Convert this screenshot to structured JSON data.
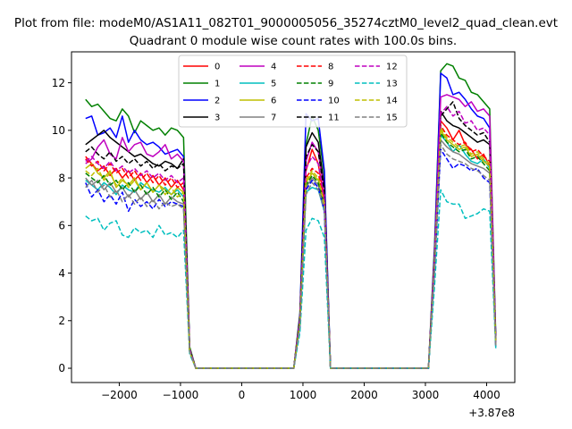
{
  "chart_data": {
    "type": "line",
    "suptitle": "Plot from file: modeM0/AS1A11_082T01_9000005056_35274cztM0_level2_quad_clean.evt",
    "title": "Quadrant 0 module wise count rates with 100.0s bins.",
    "xlabel": "",
    "ylabel": "",
    "x_offset_label": "+3.87e8",
    "xlim": [
      -2780,
      4460
    ],
    "ylim": [
      -0.6,
      13.3
    ],
    "xticks": [
      -2000,
      -1000,
      0,
      1000,
      2000,
      3000,
      4000
    ],
    "xtick_labels": [
      "−2000",
      "−1000",
      "0",
      "1000",
      "2000",
      "3000",
      "4000"
    ],
    "yticks": [
      0,
      2,
      4,
      6,
      8,
      10,
      12
    ],
    "ytick_labels": [
      "0",
      "2",
      "4",
      "6",
      "8",
      "10",
      "12"
    ],
    "grid": false,
    "legend_placement": "top-center",
    "legend_columns": 4,
    "segments": [
      {
        "x_start": -2550,
        "x_end": -950
      },
      {
        "x_start": 1050,
        "x_end": 1350
      },
      {
        "x_start": 3250,
        "x_end": 4050
      }
    ],
    "x_other": [
      -850,
      -750,
      950,
      1450,
      3150,
      4150
    ],
    "series": [
      {
        "name": "0",
        "color": "#ff0000",
        "dash": false,
        "seg_values": [
          [
            8.9,
            8.6,
            8.3,
            8.5,
            8.1,
            8.4,
            8.0,
            8.3,
            7.9,
            8.2,
            7.8,
            8.1,
            7.7,
            8.0,
            7.6,
            7.9,
            7.5
          ],
          [
            8.3,
            9.2,
            8.6,
            7.0
          ],
          [
            10.4,
            10.1,
            9.6,
            10.0,
            9.4,
            9.2,
            8.8,
            9.0,
            8.5
          ]
        ],
        "tail": [
          0.7,
          0.5,
          2.0,
          0.4,
          4.5,
          1.0
        ]
      },
      {
        "name": "1",
        "color": "#008000",
        "dash": false,
        "seg_values": [
          [
            11.3,
            11.0,
            11.1,
            10.8,
            10.5,
            10.4,
            10.9,
            10.6,
            9.9,
            10.4,
            10.2,
            10.0,
            10.1,
            9.8,
            10.1,
            10.0,
            9.7
          ],
          [
            9.4,
            10.6,
            10.0,
            8.1
          ],
          [
            12.5,
            12.8,
            12.7,
            12.2,
            12.1,
            11.6,
            11.5,
            11.2,
            10.9
          ]
        ],
        "tail": [
          0.9,
          0.6,
          2.3,
          0.5,
          5.2,
          1.3
        ]
      },
      {
        "name": "2",
        "color": "#0000ff",
        "dash": false,
        "seg_values": [
          [
            10.5,
            10.6,
            9.8,
            9.9,
            10.1,
            9.7,
            10.6,
            9.5,
            10.0,
            9.6,
            9.4,
            9.5,
            9.3,
            9.0,
            9.1,
            9.2,
            8.9
          ],
          [
            10.7,
            10.4,
            10.5,
            8.3
          ],
          [
            12.4,
            12.2,
            11.5,
            11.6,
            11.3,
            10.9,
            10.6,
            10.5,
            10.1
          ]
        ],
        "tail": [
          0.8,
          0.6,
          2.2,
          0.5,
          5.0,
          1.2
        ]
      },
      {
        "name": "3",
        "color": "#000000",
        "dash": false,
        "seg_values": [
          [
            9.4,
            9.6,
            9.8,
            10.0,
            9.7,
            9.5,
            9.3,
            9.1,
            8.9,
            9.0,
            8.8,
            8.6,
            8.5,
            8.7,
            8.6,
            8.4,
            8.8
          ],
          [
            9.3,
            9.9,
            9.5,
            7.6
          ],
          [
            10.8,
            10.4,
            10.2,
            10.1,
            9.9,
            9.7,
            9.5,
            9.6,
            9.4
          ]
        ],
        "tail": [
          0.8,
          0.5,
          2.1,
          0.4,
          4.7,
          1.1
        ]
      },
      {
        "name": "4",
        "color": "#bf00bf",
        "dash": false,
        "seg_values": [
          [
            8.6,
            8.8,
            9.3,
            9.6,
            9.0,
            8.8,
            9.7,
            9.1,
            9.4,
            9.5,
            9.0,
            8.9,
            9.1,
            9.4,
            8.8,
            9.0,
            8.7
          ],
          [
            8.7,
            9.5,
            9.1,
            7.4
          ],
          [
            11.4,
            11.5,
            11.4,
            11.3,
            11.0,
            11.2,
            10.8,
            10.9,
            10.6
          ]
        ],
        "tail": [
          0.8,
          0.5,
          2.1,
          0.4,
          4.8,
          1.1
        ]
      },
      {
        "name": "5",
        "color": "#00bfbf",
        "dash": false,
        "seg_values": [
          [
            7.9,
            7.7,
            7.5,
            7.8,
            7.6,
            7.3,
            7.7,
            7.5,
            7.4,
            7.8,
            7.6,
            7.5,
            7.4,
            7.6,
            7.3,
            7.5,
            7.2
          ],
          [
            7.4,
            7.6,
            7.5,
            6.6
          ],
          [
            9.8,
            9.5,
            9.1,
            9.4,
            9.0,
            8.7,
            8.6,
            8.8,
            8.4
          ]
        ],
        "tail": [
          0.7,
          0.4,
          1.8,
          0.3,
          4.2,
          0.9
        ]
      },
      {
        "name": "6",
        "color": "#bfbf00",
        "dash": false,
        "seg_values": [
          [
            8.4,
            8.6,
            8.2,
            8.0,
            8.3,
            7.6,
            7.9,
            7.7,
            8.0,
            7.5,
            7.8,
            7.4,
            7.7,
            7.5,
            7.3,
            7.6,
            7.4
          ],
          [
            7.8,
            8.2,
            7.9,
            6.9
          ],
          [
            10.0,
            9.6,
            9.4,
            9.2,
            9.3,
            8.9,
            9.0,
            8.7,
            8.5
          ]
        ],
        "tail": [
          0.7,
          0.4,
          1.9,
          0.3,
          4.4,
          1.0
        ]
      },
      {
        "name": "7",
        "color": "#808080",
        "dash": false,
        "seg_values": [
          [
            8.0,
            7.7,
            7.9,
            7.5,
            7.8,
            7.4,
            7.6,
            7.2,
            7.5,
            7.1,
            7.4,
            7.0,
            7.3,
            6.9,
            7.2,
            7.0,
            6.9
          ],
          [
            7.6,
            8.0,
            7.7,
            6.8
          ],
          [
            9.6,
            9.3,
            9.1,
            9.0,
            8.8,
            8.6,
            8.5,
            8.4,
            8.2
          ]
        ],
        "tail": [
          0.7,
          0.4,
          1.8,
          0.3,
          4.3,
          0.9
        ]
      },
      {
        "name": "8",
        "color": "#ff0000",
        "dash": true,
        "seg_values": [
          [
            8.8,
            8.5,
            8.7,
            8.3,
            8.6,
            8.2,
            8.4,
            8.0,
            8.3,
            7.9,
            8.2,
            7.8,
            8.1,
            7.7,
            8.0,
            7.6,
            7.8
          ],
          [
            8.0,
            8.4,
            8.2,
            7.0
          ],
          [
            10.2,
            9.8,
            9.6,
            9.4,
            9.5,
            9.1,
            9.2,
            8.9,
            8.7
          ]
        ],
        "tail": [
          0.7,
          0.5,
          2.0,
          0.4,
          4.5,
          1.0
        ]
      },
      {
        "name": "9",
        "color": "#008000",
        "dash": true,
        "seg_values": [
          [
            8.2,
            8.0,
            7.8,
            8.1,
            7.7,
            7.9,
            7.5,
            7.8,
            7.4,
            7.7,
            7.3,
            7.6,
            7.2,
            7.5,
            7.1,
            7.4,
            7.0
          ],
          [
            7.7,
            8.1,
            7.8,
            6.9
          ],
          [
            9.9,
            9.5,
            9.3,
            9.1,
            9.2,
            8.8,
            8.9,
            8.6,
            8.3
          ]
        ],
        "tail": [
          0.7,
          0.4,
          1.9,
          0.3,
          4.4,
          1.0
        ]
      },
      {
        "name": "10",
        "color": "#0000ff",
        "dash": true,
        "seg_values": [
          [
            7.8,
            7.2,
            7.5,
            7.0,
            7.3,
            6.9,
            7.4,
            6.6,
            7.1,
            6.8,
            7.0,
            6.7,
            7.1,
            6.8,
            7.0,
            6.9,
            6.8
          ],
          [
            7.5,
            7.9,
            7.6,
            6.6
          ],
          [
            9.2,
            8.8,
            8.4,
            8.6,
            8.5,
            8.3,
            8.4,
            8.0,
            7.8
          ]
        ],
        "tail": [
          0.7,
          0.4,
          1.7,
          0.3,
          4.1,
          0.9
        ]
      },
      {
        "name": "11",
        "color": "#000000",
        "dash": true,
        "seg_values": [
          [
            9.1,
            9.3,
            9.0,
            8.8,
            9.1,
            8.7,
            8.9,
            8.6,
            8.8,
            8.5,
            8.7,
            8.4,
            8.6,
            8.3,
            8.5,
            8.4,
            8.6
          ],
          [
            8.9,
            9.4,
            9.1,
            7.4
          ],
          [
            10.6,
            10.9,
            11.2,
            10.5,
            10.2,
            10.0,
            9.8,
            9.9,
            9.5
          ]
        ],
        "tail": [
          0.8,
          0.5,
          2.1,
          0.4,
          4.7,
          1.1
        ]
      },
      {
        "name": "12",
        "color": "#bf00bf",
        "dash": true,
        "seg_values": [
          [
            8.7,
            8.9,
            8.6,
            8.4,
            8.7,
            8.3,
            8.5,
            8.2,
            8.4,
            8.1,
            8.3,
            8.0,
            8.2,
            7.9,
            8.1,
            7.8,
            8.0
          ],
          [
            8.4,
            8.9,
            8.6,
            7.1
          ],
          [
            10.7,
            11.0,
            10.6,
            10.8,
            10.3,
            10.4,
            10.0,
            10.1,
            9.8
          ]
        ],
        "tail": [
          0.8,
          0.5,
          2.0,
          0.4,
          4.6,
          1.0
        ]
      },
      {
        "name": "13",
        "color": "#00bfbf",
        "dash": true,
        "seg_values": [
          [
            6.4,
            6.2,
            6.3,
            5.8,
            6.1,
            6.2,
            5.6,
            5.5,
            5.9,
            5.7,
            5.8,
            5.5,
            6.0,
            5.6,
            5.7,
            5.5,
            5.8
          ],
          [
            5.8,
            6.3,
            6.2,
            5.5
          ],
          [
            7.5,
            7.0,
            6.9,
            6.9,
            6.3,
            6.4,
            6.5,
            6.7,
            6.6
          ]
        ],
        "tail": [
          0.6,
          0.3,
          1.5,
          0.2,
          3.5,
          0.8
        ]
      },
      {
        "name": "14",
        "color": "#bfbf00",
        "dash": true,
        "seg_values": [
          [
            8.3,
            8.1,
            8.4,
            7.9,
            8.2,
            7.7,
            8.0,
            7.6,
            7.9,
            7.5,
            7.8,
            7.4,
            7.7,
            7.3,
            7.6,
            7.2,
            7.4
          ],
          [
            7.9,
            8.3,
            8.0,
            6.9
          ],
          [
            10.1,
            9.7,
            9.5,
            9.3,
            9.4,
            9.0,
            9.1,
            8.8,
            8.6
          ]
        ],
        "tail": [
          0.7,
          0.4,
          1.9,
          0.3,
          4.4,
          1.0
        ]
      },
      {
        "name": "15",
        "color": "#808080",
        "dash": true,
        "seg_values": [
          [
            7.6,
            7.9,
            7.4,
            7.7,
            7.2,
            7.5,
            7.0,
            7.3,
            6.9,
            7.2,
            6.8,
            7.1,
            6.7,
            7.0,
            6.8,
            6.9,
            6.7
          ],
          [
            7.3,
            7.8,
            7.5,
            6.7
          ],
          [
            9.4,
            9.0,
            8.8,
            8.7,
            8.6,
            8.4,
            8.3,
            8.1,
            7.9
          ]
        ],
        "tail": [
          0.7,
          0.4,
          1.8,
          0.3,
          4.2,
          0.9
        ]
      }
    ]
  }
}
